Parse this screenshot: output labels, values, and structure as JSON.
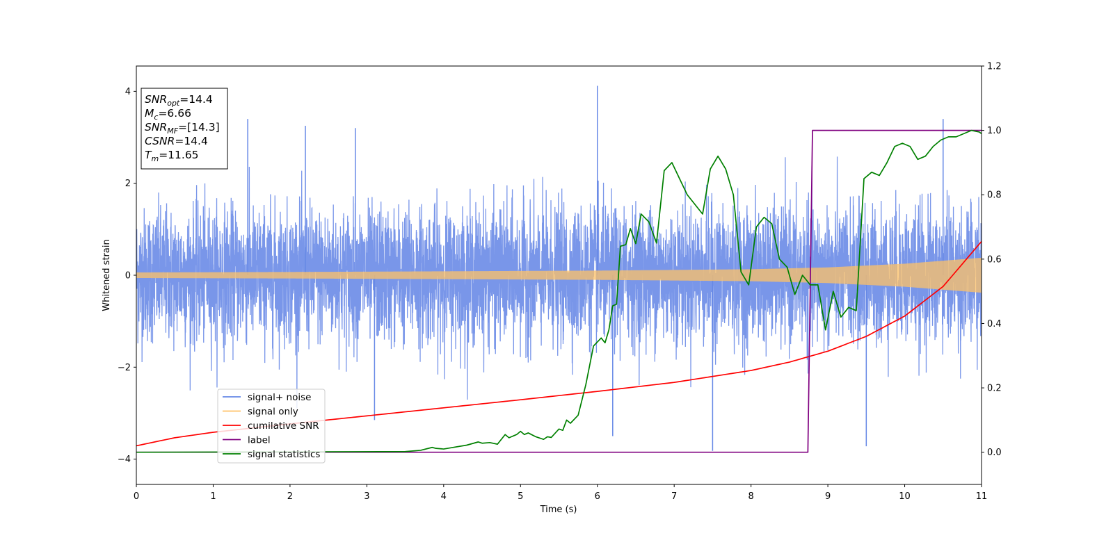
{
  "chart_data": {
    "type": "line",
    "title": "",
    "xlabel": "Time (s)",
    "ylabel": "Whitened strain",
    "xlim": [
      0,
      11
    ],
    "ylim": [
      -4.55,
      4.55
    ],
    "y2lim": [
      -0.1,
      1.2
    ],
    "grid": false,
    "legend_position": "lower-left",
    "xticks": [
      "0",
      "1",
      "2",
      "3",
      "4",
      "5",
      "6",
      "7",
      "8",
      "9",
      "10",
      "11"
    ],
    "yticks": [
      "−4",
      "−2",
      "0",
      "2",
      "4"
    ],
    "y2ticks": [
      "0.0",
      "0.2",
      "0.4",
      "0.6",
      "0.8",
      "1.0",
      "1.2"
    ],
    "info_box": [
      {
        "name": "SNR",
        "sub": "opt",
        "value": "=14.4"
      },
      {
        "name": "M",
        "sub": "c",
        "value": "=6.66"
      },
      {
        "name": "SNR",
        "sub": "MF",
        "value": "=[14.3]"
      },
      {
        "name": "CSNR",
        "sub": "",
        "value": "=14.4"
      },
      {
        "name": "T",
        "sub": "m",
        "value": "=11.65"
      }
    ],
    "series": [
      {
        "name": "signal+ noise",
        "axis": "left",
        "color": "#6688e6",
        "kind": "noise",
        "envelope_typical": 1.8,
        "spikes": [
          [
            6.0,
            4.12
          ],
          [
            1.45,
            3.4
          ],
          [
            2.2,
            3.25
          ],
          [
            2.85,
            3.2
          ],
          [
            10.5,
            3.4
          ],
          [
            7.5,
            -3.82
          ],
          [
            9.5,
            -3.72
          ],
          [
            3.1,
            -3.15
          ],
          [
            6.2,
            -3.5
          ]
        ]
      },
      {
        "name": "signal only",
        "axis": "left",
        "color": "#ffc266",
        "kind": "chirp",
        "x": [
          0,
          2,
          4,
          6,
          8,
          9,
          10,
          11
        ],
        "amplitude": [
          0.06,
          0.07,
          0.085,
          0.1,
          0.13,
          0.17,
          0.25,
          0.38
        ]
      },
      {
        "name": "cumilative SNR",
        "axis": "right",
        "color": "#ff0000",
        "x": [
          0,
          0.5,
          1,
          2,
          3,
          4,
          5,
          6,
          7,
          8,
          8.5,
          9,
          9.5,
          10,
          10.5,
          11
        ],
        "y": [
          0.02,
          0.045,
          0.062,
          0.088,
          0.113,
          0.138,
          0.163,
          0.189,
          0.217,
          0.254,
          0.28,
          0.314,
          0.36,
          0.423,
          0.515,
          0.655
        ]
      },
      {
        "name": "label",
        "axis": "right",
        "color": "#800080",
        "x": [
          0,
          8.74,
          8.8,
          11
        ],
        "y": [
          0.0,
          0.0,
          1.0,
          1.0
        ]
      },
      {
        "name": "signal statistics",
        "axis": "right",
        "color": "#008000",
        "x": [
          0,
          3.5,
          3.7,
          3.85,
          3.9,
          4.0,
          4.1,
          4.3,
          4.45,
          4.5,
          4.6,
          4.7,
          4.8,
          4.85,
          4.95,
          5.0,
          5.05,
          5.1,
          5.2,
          5.3,
          5.35,
          5.4,
          5.5,
          5.55,
          5.6,
          5.65,
          5.75,
          5.85,
          5.95,
          6.05,
          6.1,
          6.15,
          6.2,
          6.25,
          6.3,
          6.37,
          6.43,
          6.5,
          6.57,
          6.67,
          6.77,
          6.87,
          6.97,
          7.07,
          7.17,
          7.27,
          7.37,
          7.47,
          7.57,
          7.67,
          7.77,
          7.87,
          7.97,
          8.07,
          8.17,
          8.27,
          8.37,
          8.47,
          8.57,
          8.67,
          8.77,
          8.87,
          8.97,
          9.07,
          9.17,
          9.27,
          9.37,
          9.47,
          9.57,
          9.67,
          9.77,
          9.87,
          9.97,
          10.07,
          10.17,
          10.27,
          10.37,
          10.47,
          10.57,
          10.67,
          10.77,
          10.87,
          10.97,
          11.0
        ],
        "y": [
          0.0,
          0.002,
          0.006,
          0.015,
          0.012,
          0.01,
          0.014,
          0.022,
          0.032,
          0.028,
          0.03,
          0.025,
          0.055,
          0.045,
          0.055,
          0.065,
          0.055,
          0.06,
          0.048,
          0.04,
          0.048,
          0.046,
          0.072,
          0.068,
          0.1,
          0.09,
          0.115,
          0.21,
          0.33,
          0.355,
          0.34,
          0.38,
          0.455,
          0.46,
          0.64,
          0.645,
          0.695,
          0.648,
          0.74,
          0.716,
          0.65,
          0.875,
          0.9,
          0.85,
          0.8,
          0.77,
          0.74,
          0.88,
          0.92,
          0.88,
          0.8,
          0.56,
          0.52,
          0.7,
          0.73,
          0.71,
          0.6,
          0.575,
          0.49,
          0.55,
          0.52,
          0.52,
          0.38,
          0.5,
          0.42,
          0.45,
          0.44,
          0.85,
          0.87,
          0.86,
          0.9,
          0.95,
          0.96,
          0.95,
          0.91,
          0.92,
          0.95,
          0.97,
          0.98,
          0.98,
          0.99,
          1.0,
          0.995,
          0.99
        ]
      }
    ]
  }
}
